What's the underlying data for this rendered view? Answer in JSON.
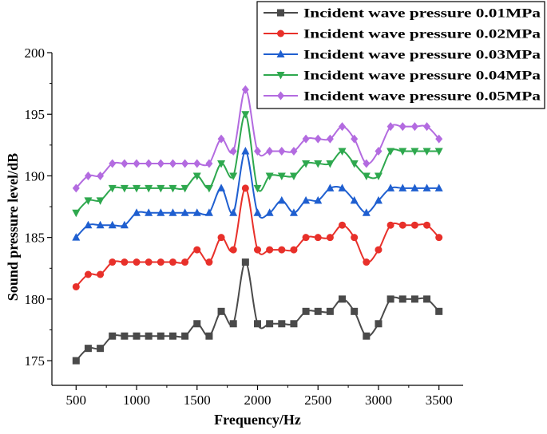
{
  "chart_data": {
    "type": "line",
    "xlabel": "Frequency/Hz",
    "ylabel": "Sound pressure level/dB",
    "xlim": [
      300,
      3700
    ],
    "ylim": [
      173,
      200
    ],
    "xticks": [
      500,
      1000,
      1500,
      2000,
      2500,
      3000,
      3500
    ],
    "yticks": [
      175,
      180,
      185,
      190,
      195,
      200
    ],
    "legend_position": "top-right",
    "x": [
      500,
      600,
      700,
      800,
      900,
      1000,
      1100,
      1200,
      1300,
      1400,
      1500,
      1600,
      1700,
      1800,
      1900,
      2000,
      2100,
      2200,
      2300,
      2400,
      2500,
      2600,
      2700,
      2800,
      2900,
      3000,
      3100,
      3200,
      3300,
      3400,
      3500
    ],
    "series": [
      {
        "name": "Incident wave pressure 0.01MPa",
        "color": "#4a4a4a",
        "marker": "square",
        "values": [
          175,
          176,
          176,
          177,
          177,
          177,
          177,
          177,
          177,
          177,
          178,
          177,
          179,
          178,
          183,
          178,
          178,
          178,
          178,
          179,
          179,
          179,
          180,
          179,
          177,
          178,
          180,
          180,
          180,
          180,
          179
        ]
      },
      {
        "name": "Incident wave pressure 0.02MPa",
        "color": "#e8302a",
        "marker": "circle",
        "values": [
          181,
          182,
          182,
          183,
          183,
          183,
          183,
          183,
          183,
          183,
          184,
          183,
          185,
          184,
          189,
          184,
          184,
          184,
          184,
          185,
          185,
          185,
          186,
          185,
          183,
          184,
          186,
          186,
          186,
          186,
          185
        ]
      },
      {
        "name": "Incident wave pressure 0.03MPa",
        "color": "#1f5fd0",
        "marker": "triangle-up",
        "values": [
          185,
          186,
          186,
          186,
          186,
          187,
          187,
          187,
          187,
          187,
          187,
          187,
          189,
          187,
          192,
          187,
          187,
          188,
          187,
          188,
          188,
          189,
          189,
          188,
          187,
          188,
          189,
          189,
          189,
          189,
          189
        ]
      },
      {
        "name": "Incident wave pressure 0.04MPa",
        "color": "#2ea84e",
        "marker": "triangle-down",
        "values": [
          187,
          188,
          188,
          189,
          189,
          189,
          189,
          189,
          189,
          189,
          190,
          189,
          191,
          190,
          195,
          189,
          190,
          190,
          190,
          191,
          191,
          191,
          192,
          191,
          190,
          190,
          192,
          192,
          192,
          192,
          192
        ]
      },
      {
        "name": "Incident wave pressure 0.05MPa",
        "color": "#b36be0",
        "marker": "diamond",
        "values": [
          189,
          190,
          190,
          191,
          191,
          191,
          191,
          191,
          191,
          191,
          191,
          191,
          193,
          192,
          197,
          192,
          192,
          192,
          192,
          193,
          193,
          193,
          194,
          193,
          191,
          192,
          194,
          194,
          194,
          194,
          193
        ]
      }
    ]
  }
}
